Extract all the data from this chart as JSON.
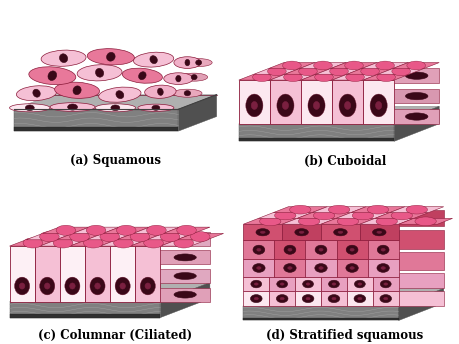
{
  "labels": [
    "(a) Squamous",
    "(b) Cuboidal",
    "(c) Columnar (Ciliated)",
    "(d) Stratified squamous"
  ],
  "label_fontsize": 8.5,
  "label_fontweight": "bold",
  "bg_color": "#ffffff",
  "pink_very_light": "#fce8f0",
  "pink_light": "#f5c0d5",
  "pink_mid": "#e8789a",
  "pink_dark": "#d04878",
  "pink_deep": "#b83060",
  "pink_cell_top": "#e85888",
  "nucleus_dark": "#3a0818",
  "base_stripe1": "#b0b0b0",
  "base_stripe2": "#808080",
  "base_stripe3": "#505050",
  "mem_line": "#6b1530",
  "cell_outline": "#8b1a3a",
  "white_pink": "#fdf0f5",
  "side_pink": "#e0a0b8",
  "top_pink": "#e06080"
}
